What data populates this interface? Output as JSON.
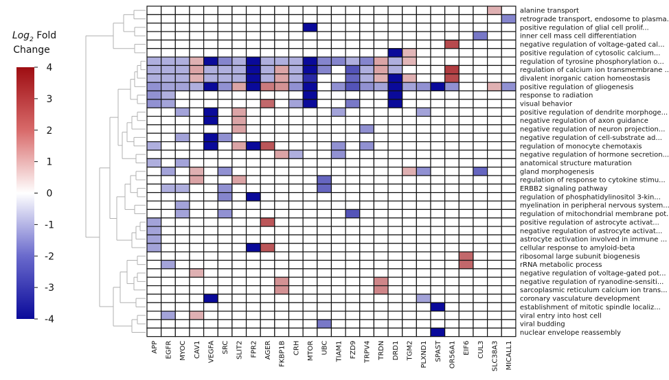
{
  "chart_data": {
    "type": "heatmap",
    "colorbar": {
      "title_line1": "Log",
      "title_sub": "2",
      "title_line1b": " Fold",
      "title_line2": "Change",
      "range": [
        -4,
        4
      ],
      "ticks": [
        "4",
        "3",
        "2",
        "1",
        "0",
        "-1",
        "-2",
        "-3",
        "-4"
      ]
    },
    "columns": [
      "APP",
      "EGFR",
      "MYOC",
      "CAV1",
      "VEGFA",
      "SRC",
      "SLIT2",
      "FPR2",
      "AGER",
      "FKBP1B",
      "CRH",
      "MTOR",
      "UBC",
      "TIAM1",
      "FZD9",
      "TRPV4",
      "TRDN",
      "DRD1",
      "TGM2",
      "PLXND1",
      "SPAST",
      "OR56A1",
      "EIF6",
      "CUL3",
      "SLC38A3",
      "MICALL1"
    ],
    "rows": [
      "alanine transport",
      "retrograde transport, endosome to plasma...",
      "positive regulation of glial cell prolif...",
      "inner cell mass cell differentiation",
      "negative regulation of voltage-gated cal...",
      "positive regulation of cytosolic calcium...",
      "regulation of tyrosine phosphorylation o...",
      "regulation of calcium ion transmembrane ...",
      "divalent inorganic cation homeostasis",
      "positive regulation of gliogenesis",
      "response to radiation",
      "visual behavior",
      "positive regulation of dendrite morphoge...",
      "negative regulation of axon guidance",
      "negative regulation of neuron projection...",
      "negative regulation of cell-substrate ad...",
      "regulation of monocyte chemotaxis",
      "negative regulation of hormone secretion...",
      "anatomical structure maturation",
      "gland morphogenesis",
      "regulation of response to cytokine stimu...",
      "ERBB2 signaling pathway",
      "regulation of phosphatidylinositol 3-kin...",
      "myelination in peripheral nervous system...",
      "regulation of mitochondrial membrane pot...",
      "positive regulation of astrocyte activat...",
      "negative regulation of astrocyte activat...",
      "astrocyte activation involved in immune ...",
      "cellular response to amyloid-beta",
      "ribosomal large subunit biogenesis",
      "rRNA metabolic process",
      "negative regulation of voltage-gated pot...",
      "negative regulation of ryanodine-sensiti...",
      "sarcoplasmic reticulum calcium ion trans...",
      "coronary vasculature development",
      "establishment of mitotic spindle localiz...",
      "viral entry into host cell",
      "viral budding",
      "nuclear envelope reassembly"
    ],
    "values": [
      [
        0,
        0,
        0,
        0,
        0,
        0,
        0,
        0,
        0,
        0,
        0,
        0,
        0,
        0,
        0,
        0,
        0,
        0,
        0,
        0,
        0,
        0,
        0,
        0,
        1.3,
        0
      ],
      [
        0,
        0,
        0,
        0,
        0,
        0,
        0,
        0,
        0,
        0,
        0,
        0,
        0,
        0,
        0,
        0,
        0,
        0,
        0,
        0,
        0,
        0,
        0,
        0,
        0,
        -2
      ],
      [
        0,
        0,
        0,
        0,
        0,
        0,
        0,
        0,
        0,
        0,
        0,
        -4,
        0,
        0,
        0,
        0,
        0,
        0,
        0,
        0,
        0,
        0,
        0,
        0,
        0,
        0
      ],
      [
        0,
        0,
        0,
        0,
        0,
        0,
        0,
        0,
        0,
        0,
        0,
        0,
        0,
        0,
        0,
        0,
        0,
        0,
        0,
        0,
        0,
        0,
        0,
        -2.2,
        0,
        0
      ],
      [
        0,
        0,
        0,
        0,
        0,
        0,
        0,
        0,
        0,
        0,
        0,
        0,
        0,
        0,
        0,
        0,
        0,
        0,
        0,
        0,
        0,
        3,
        0,
        0,
        0,
        0
      ],
      [
        0,
        0,
        0,
        0,
        0,
        0,
        0,
        0,
        0,
        0,
        0,
        0,
        0,
        0,
        0,
        0,
        0,
        -4,
        1.2,
        0,
        0,
        0,
        0,
        0,
        0,
        0
      ],
      [
        -1.3,
        -1.3,
        -1.3,
        1.3,
        -4,
        -2,
        -1.3,
        -4,
        -1.3,
        -1.3,
        -1.3,
        -4,
        -2,
        -2,
        -1.3,
        -2,
        1.5,
        -1.3,
        1.2,
        0,
        0,
        0,
        0,
        0,
        0,
        0
      ],
      [
        -1.3,
        -1.3,
        -1.3,
        1.5,
        -1.3,
        -1.3,
        -1.3,
        -4,
        -1.3,
        1.5,
        -1.3,
        -4,
        -2,
        0,
        -2.8,
        -1.3,
        1.5,
        -1.3,
        0,
        0,
        0,
        3.2,
        0,
        0,
        0,
        0
      ],
      [
        -1.3,
        -1.3,
        -1.3,
        1.3,
        -1.3,
        -1.3,
        -1.3,
        -4,
        -1.3,
        1.5,
        -1.3,
        -3.5,
        0,
        0,
        -2.5,
        -1.3,
        1.3,
        -4,
        1.3,
        0,
        0,
        3,
        0,
        0,
        0,
        0
      ],
      [
        -1.8,
        -1.5,
        -1.5,
        -1.3,
        -4,
        -1.8,
        1.5,
        -4,
        2.2,
        1.8,
        -1.8,
        -4,
        0,
        -1.8,
        -2.8,
        -1.8,
        -1.5,
        -4,
        -1.5,
        -1.8,
        -4,
        -1.8,
        0,
        0,
        1.3,
        -1.8
      ],
      [
        -1.8,
        -1.3,
        0,
        0,
        0,
        0,
        0,
        0,
        0,
        0,
        0,
        -4,
        0,
        0,
        0,
        0,
        0,
        -4,
        0,
        0,
        0,
        0,
        0,
        0,
        0,
        0
      ],
      [
        -1.8,
        -1.5,
        0,
        0,
        0,
        0,
        0,
        0,
        2.5,
        0,
        -1.5,
        -4,
        0,
        0,
        -2.2,
        0,
        0,
        -4,
        0,
        0,
        0,
        0,
        0,
        0,
        0,
        0
      ],
      [
        0,
        0,
        -1.5,
        0,
        -4,
        0,
        1.5,
        0,
        0,
        0,
        0,
        0,
        0,
        -1.5,
        0,
        0,
        0,
        0,
        0,
        -1.5,
        0,
        0,
        0,
        0,
        0,
        0
      ],
      [
        0,
        0,
        0,
        0,
        -4,
        0,
        1.5,
        0,
        0,
        0,
        0,
        0,
        0,
        0,
        0,
        0,
        0,
        0,
        0,
        0,
        0,
        0,
        0,
        0,
        0,
        0
      ],
      [
        0,
        0,
        0,
        0,
        0,
        0,
        1.5,
        0,
        0,
        0,
        0,
        0,
        0,
        0,
        0,
        -1.8,
        0,
        0,
        0,
        0,
        0,
        0,
        0,
        0,
        0,
        0
      ],
      [
        0,
        0,
        -1.5,
        0,
        -4,
        -1.8,
        0,
        0,
        0,
        0,
        0,
        0,
        0,
        0,
        0,
        0,
        0,
        0,
        0,
        0,
        0,
        0,
        0,
        0,
        0,
        0
      ],
      [
        -1.3,
        0,
        0,
        0,
        -4,
        0,
        1.5,
        -4,
        2.8,
        0,
        0,
        0,
        0,
        -1.8,
        0,
        -1.8,
        0,
        0,
        0,
        0,
        0,
        0,
        0,
        0,
        0,
        0
      ],
      [
        0,
        0,
        0,
        0,
        0,
        0,
        0,
        0,
        0,
        1.5,
        -1.3,
        0,
        0,
        -1.8,
        0,
        0,
        0,
        0,
        0,
        0,
        0,
        0,
        0,
        0,
        0,
        0
      ],
      [
        -1.3,
        0,
        -1.5,
        0,
        0,
        0,
        0,
        0,
        0,
        0,
        0,
        0,
        0,
        0,
        0,
        0,
        0,
        0,
        0,
        0,
        0,
        0,
        0,
        0,
        0,
        0
      ],
      [
        0,
        -1.5,
        0,
        1.3,
        0,
        -1.8,
        0,
        0,
        0,
        0,
        0,
        0,
        0,
        0,
        0,
        0,
        0,
        0,
        1.3,
        -1.8,
        0,
        0,
        0,
        -2.5,
        0,
        0
      ],
      [
        0,
        0,
        0,
        1.5,
        0,
        0,
        1.5,
        0,
        0,
        0,
        0,
        0,
        -2.5,
        0,
        0,
        0,
        0,
        0,
        0,
        0,
        0,
        0,
        0,
        0,
        0,
        0
      ],
      [
        0,
        -1.3,
        -1.3,
        0,
        0,
        -1.8,
        0,
        0,
        0,
        0,
        0,
        0,
        -2.5,
        0,
        0,
        0,
        0,
        0,
        0,
        0,
        0,
        0,
        0,
        0,
        0,
        0
      ],
      [
        0,
        0,
        0,
        0,
        0,
        -2,
        0,
        -4,
        0,
        0,
        0,
        0,
        0,
        0,
        0,
        0,
        0,
        0,
        0,
        0,
        0,
        0,
        0,
        0,
        0,
        0
      ],
      [
        0,
        0,
        -1.5,
        0,
        0,
        0,
        0,
        0,
        0,
        0,
        0,
        0,
        0,
        0,
        0,
        0,
        0,
        0,
        0,
        0,
        0,
        0,
        0,
        0,
        0,
        0
      ],
      [
        0,
        0,
        -1.5,
        0,
        0,
        -1.8,
        0,
        0,
        0,
        0,
        0,
        0,
        0,
        0,
        -2.8,
        0,
        0,
        0,
        0,
        0,
        0,
        0,
        0,
        0,
        0,
        0
      ],
      [
        -1.5,
        0,
        0,
        0,
        0,
        0,
        0,
        0,
        2.8,
        0,
        0,
        0,
        0,
        0,
        0,
        0,
        0,
        0,
        0,
        0,
        0,
        0,
        0,
        0,
        0,
        0
      ],
      [
        -1.5,
        0,
        0,
        0,
        0,
        0,
        0,
        0,
        0,
        0,
        0,
        0,
        0,
        0,
        0,
        0,
        0,
        0,
        0,
        0,
        0,
        0,
        0,
        0,
        0,
        0
      ],
      [
        -1.5,
        0,
        0,
        0,
        0,
        0,
        0,
        0,
        0,
        0,
        0,
        0,
        0,
        0,
        0,
        0,
        0,
        0,
        0,
        0,
        0,
        0,
        0,
        0,
        0,
        0
      ],
      [
        -1.5,
        0,
        0,
        0,
        0,
        0,
        0,
        -4,
        2.8,
        0,
        0,
        0,
        0,
        0,
        0,
        0,
        0,
        0,
        0,
        0,
        0,
        0,
        0,
        0,
        0,
        0
      ],
      [
        0,
        0,
        0,
        0,
        0,
        0,
        0,
        0,
        0,
        0,
        0,
        0,
        0,
        0,
        0,
        0,
        0,
        0,
        0,
        0,
        0,
        0,
        2.5,
        0,
        0,
        0
      ],
      [
        0,
        -1.5,
        0,
        0,
        0,
        0,
        0,
        0,
        0,
        0,
        0,
        0,
        0,
        0,
        0,
        0,
        0,
        0,
        0,
        0,
        0,
        0,
        2.5,
        0,
        0,
        0
      ],
      [
        0,
        0,
        0,
        1.3,
        0,
        0,
        0,
        0,
        0,
        0,
        0,
        0,
        0,
        0,
        0,
        0,
        0,
        0,
        0,
        0,
        0,
        0,
        0,
        0,
        0,
        0
      ],
      [
        0,
        0,
        0,
        0,
        0,
        0,
        0,
        0,
        0,
        1.8,
        0,
        0,
        0,
        0,
        0,
        0,
        2.0,
        0,
        0,
        0,
        0,
        0,
        0,
        0,
        0,
        0
      ],
      [
        0,
        0,
        0,
        0,
        0,
        0,
        0,
        0,
        0,
        1.8,
        0,
        0,
        0,
        0,
        0,
        0,
        2.0,
        0,
        0,
        0,
        0,
        0,
        0,
        0,
        0,
        0
      ],
      [
        0,
        0,
        0,
        0,
        -4,
        0,
        0,
        0,
        0,
        0,
        0,
        0,
        0,
        0,
        0,
        0,
        0,
        0,
        0,
        -1.5,
        0,
        0,
        0,
        0,
        0,
        0
      ],
      [
        0,
        0,
        0,
        0,
        0,
        0,
        0,
        0,
        0,
        0,
        0,
        0,
        0,
        0,
        0,
        0,
        0,
        0,
        0,
        0,
        -4,
        0,
        0,
        0,
        0,
        0
      ],
      [
        0,
        -1.5,
        0,
        1.3,
        0,
        0,
        0,
        0,
        0,
        0,
        0,
        0,
        0,
        0,
        0,
        0,
        0,
        0,
        0,
        0,
        0,
        0,
        0,
        0,
        0,
        0
      ],
      [
        0,
        0,
        0,
        0,
        0,
        0,
        0,
        0,
        0,
        0,
        0,
        0,
        -2.2,
        0,
        0,
        0,
        0,
        0,
        0,
        0,
        0,
        0,
        0,
        0,
        0,
        0
      ],
      [
        0,
        0,
        0,
        0,
        0,
        0,
        0,
        0,
        0,
        0,
        0,
        0,
        0,
        0,
        0,
        0,
        0,
        0,
        0,
        0,
        -4,
        0,
        0,
        0,
        0,
        0
      ]
    ],
    "dendrogram": "row-clustering",
    "colors": {
      "max": "#9e0d12",
      "mid": "#ffffff",
      "min": "#0a0a9a",
      "grid": "#111111",
      "dendrogram": "#b0b0b0"
    }
  }
}
